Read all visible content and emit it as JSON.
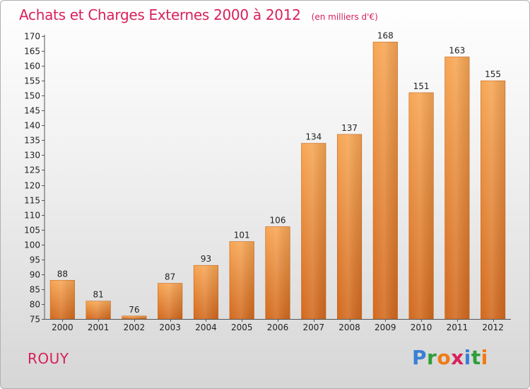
{
  "title": "Achats et Charges Externes 2000 à 2012",
  "subtitle": "(en milliers d'€)",
  "location": "ROUY",
  "brand": {
    "letters": [
      "P",
      "r",
      "o",
      "x",
      "i",
      "t",
      "i"
    ],
    "colors": [
      "#3a7fd5",
      "#2e9e3a",
      "#f07a14",
      "#d8215a",
      "#3a7fd5",
      "#2e9e3a",
      "#f07a14"
    ]
  },
  "colors": {
    "bar_top": "#f7a654",
    "bar_bottom": "#d2691e",
    "title": "#d8215a"
  },
  "chart_data": {
    "type": "bar",
    "categories": [
      "2000",
      "2001",
      "2002",
      "2003",
      "2004",
      "2005",
      "2006",
      "2007",
      "2008",
      "2009",
      "2010",
      "2011",
      "2012"
    ],
    "values": [
      88,
      81,
      76,
      87,
      93,
      101,
      106,
      134,
      137,
      168,
      151,
      163,
      155
    ],
    "title": "Achats et Charges Externes 2000 à 2012",
    "xlabel": "",
    "ylabel": "",
    "ylim": [
      75,
      170
    ],
    "yticks": [
      75,
      80,
      85,
      90,
      95,
      100,
      105,
      110,
      115,
      120,
      125,
      130,
      135,
      140,
      145,
      150,
      155,
      160,
      165,
      170
    ],
    "grid": false,
    "data_labels": true
  }
}
